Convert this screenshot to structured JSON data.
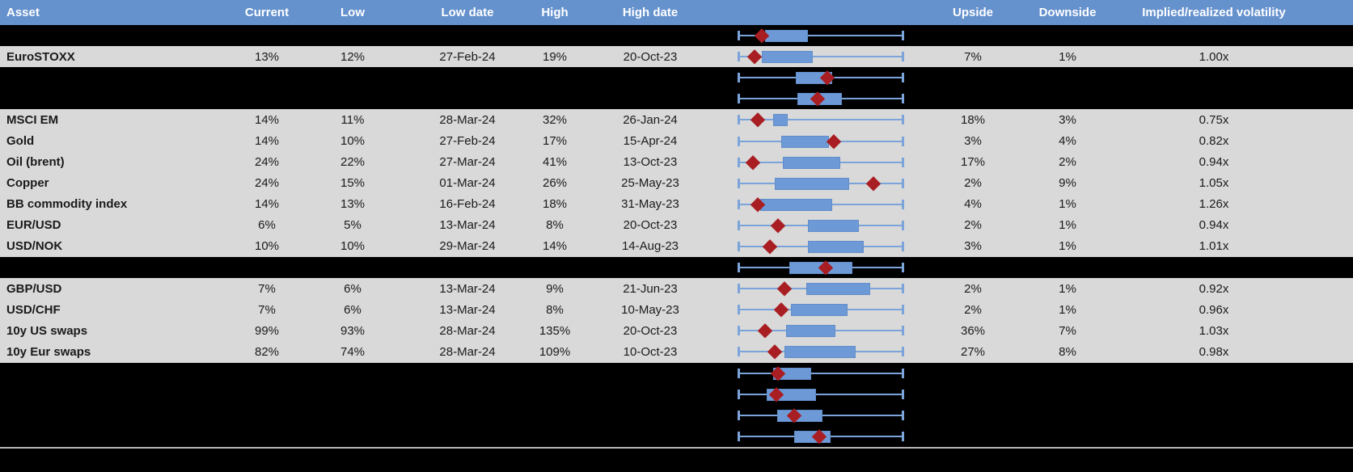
{
  "colors": {
    "header_blue": "#6591cd",
    "row_gray": "#d9d9d9",
    "separator_black": "#000000",
    "box_blue": "#6d9ad7",
    "box_border": "#618dc9",
    "whisker_blue": "#7ba4da",
    "marker_red": "#a81e22",
    "divider_gray": "#b7b7b7",
    "header_text": "#ffffff",
    "body_text": "#1a1a1a"
  },
  "columns": {
    "asset": "Asset",
    "current": "Current",
    "low": "Low",
    "low_date": "Low date",
    "high": "High",
    "high_date": "High date",
    "upside": "Upside",
    "downside": "Downside",
    "implied_realized": "Implied/realized volatility"
  },
  "chart_data": {
    "type": "table",
    "title": "Implied volatility overview with 1-year range box plots",
    "boxplot_axis": {
      "min": 0,
      "max": 1,
      "note": "positions normalized along whisker span (left cap = 0, right cap = 1); box = interquartile range, diamond = current level"
    },
    "rows": [
      {
        "kind": "chart",
        "boxplot": {
          "box_low": 0.16,
          "box_high": 0.41,
          "marker": 0.14
        }
      },
      {
        "kind": "data",
        "asset": "EuroSTOXX",
        "current": "13%",
        "low": "12%",
        "low_date": "27-Feb-24",
        "high": "19%",
        "high_date": "20-Oct-23",
        "upside": "7%",
        "downside": "1%",
        "implied_realized": "1.00x",
        "boxplot": {
          "box_low": 0.14,
          "box_high": 0.44,
          "marker": 0.1
        }
      },
      {
        "kind": "chart",
        "boxplot": {
          "box_low": 0.35,
          "box_high": 0.56,
          "marker": 0.54
        }
      },
      {
        "kind": "chart",
        "boxplot": {
          "box_low": 0.36,
          "box_high": 0.62,
          "marker": 0.48
        }
      },
      {
        "kind": "data",
        "asset": "MSCI EM",
        "current": "14%",
        "low": "11%",
        "low_date": "28-Mar-24",
        "high": "32%",
        "high_date": "26-Jan-24",
        "upside": "18%",
        "downside": "3%",
        "implied_realized": "0.75x",
        "boxplot": {
          "box_low": 0.21,
          "box_high": 0.29,
          "marker": 0.12
        }
      },
      {
        "kind": "data",
        "asset": "Gold",
        "current": "14%",
        "low": "10%",
        "low_date": "27-Feb-24",
        "high": "17%",
        "high_date": "15-Apr-24",
        "upside": "3%",
        "downside": "4%",
        "implied_realized": "0.82x",
        "boxplot": {
          "box_low": 0.26,
          "box_high": 0.54,
          "marker": 0.58
        }
      },
      {
        "kind": "data",
        "asset": "Oil (brent)",
        "current": "24%",
        "low": "22%",
        "low_date": "27-Mar-24",
        "high": "41%",
        "high_date": "13-Oct-23",
        "upside": "17%",
        "downside": "2%",
        "implied_realized": "0.94x",
        "boxplot": {
          "box_low": 0.27,
          "box_high": 0.61,
          "marker": 0.09
        }
      },
      {
        "kind": "data",
        "asset": "Copper",
        "current": "24%",
        "low": "15%",
        "low_date": "01-Mar-24",
        "high": "26%",
        "high_date": "25-May-23",
        "upside": "2%",
        "downside": "9%",
        "implied_realized": "1.05x",
        "boxplot": {
          "box_low": 0.22,
          "box_high": 0.66,
          "marker": 0.82
        }
      },
      {
        "kind": "data",
        "asset": "BB commodity index",
        "current": "14%",
        "low": "13%",
        "low_date": "16-Feb-24",
        "high": "18%",
        "high_date": "31-May-23",
        "upside": "4%",
        "downside": "1%",
        "implied_realized": "1.26x",
        "boxplot": {
          "box_low": 0.13,
          "box_high": 0.56,
          "marker": 0.12
        }
      },
      {
        "kind": "data",
        "asset": "EUR/USD",
        "current": "6%",
        "low": "5%",
        "low_date": "13-Mar-24",
        "high": "8%",
        "high_date": "20-Oct-23",
        "upside": "2%",
        "downside": "1%",
        "implied_realized": "0.94x",
        "boxplot": {
          "box_low": 0.42,
          "box_high": 0.72,
          "marker": 0.24
        }
      },
      {
        "kind": "data",
        "asset": "USD/NOK",
        "current": "10%",
        "low": "10%",
        "low_date": "29-Mar-24",
        "high": "14%",
        "high_date": "14-Aug-23",
        "upside": "3%",
        "downside": "1%",
        "implied_realized": "1.01x",
        "boxplot": {
          "box_low": 0.42,
          "box_high": 0.75,
          "marker": 0.19
        }
      },
      {
        "kind": "chart",
        "boxplot": {
          "box_low": 0.31,
          "box_high": 0.68,
          "marker": 0.53
        }
      },
      {
        "kind": "data",
        "asset": "GBP/USD",
        "current": "7%",
        "low": "6%",
        "low_date": "13-Mar-24",
        "high": "9%",
        "high_date": "21-Jun-23",
        "upside": "2%",
        "downside": "1%",
        "implied_realized": "0.92x",
        "boxplot": {
          "box_low": 0.41,
          "box_high": 0.79,
          "marker": 0.28
        }
      },
      {
        "kind": "data",
        "asset": "USD/CHF",
        "current": "7%",
        "low": "6%",
        "low_date": "13-Mar-24",
        "high": "8%",
        "high_date": "10-May-23",
        "upside": "2%",
        "downside": "1%",
        "implied_realized": "0.96x",
        "boxplot": {
          "box_low": 0.32,
          "box_high": 0.65,
          "marker": 0.26
        }
      },
      {
        "kind": "data",
        "asset": "10y US swaps",
        "current": "99%",
        "low": "93%",
        "low_date": "28-Mar-24",
        "high": "135%",
        "high_date": "20-Oct-23",
        "upside": "36%",
        "downside": "7%",
        "implied_realized": "1.03x",
        "boxplot": {
          "box_low": 0.29,
          "box_high": 0.58,
          "marker": 0.16
        }
      },
      {
        "kind": "data",
        "asset": "10y Eur swaps",
        "current": "82%",
        "low": "74%",
        "low_date": "28-Mar-24",
        "high": "109%",
        "high_date": "10-Oct-23",
        "upside": "27%",
        "downside": "8%",
        "implied_realized": "0.98x",
        "boxplot": {
          "box_low": 0.28,
          "box_high": 0.7,
          "marker": 0.22
        }
      },
      {
        "kind": "chart",
        "boxplot": {
          "box_low": 0.21,
          "box_high": 0.43,
          "marker": 0.24
        }
      },
      {
        "kind": "chart",
        "boxplot": {
          "box_low": 0.17,
          "box_high": 0.46,
          "marker": 0.23
        }
      },
      {
        "kind": "chart",
        "boxplot": {
          "box_low": 0.235,
          "box_high": 0.5,
          "marker": 0.34
        }
      },
      {
        "kind": "chart",
        "boxplot": {
          "box_low": 0.34,
          "box_high": 0.55,
          "marker": 0.49
        }
      }
    ]
  }
}
